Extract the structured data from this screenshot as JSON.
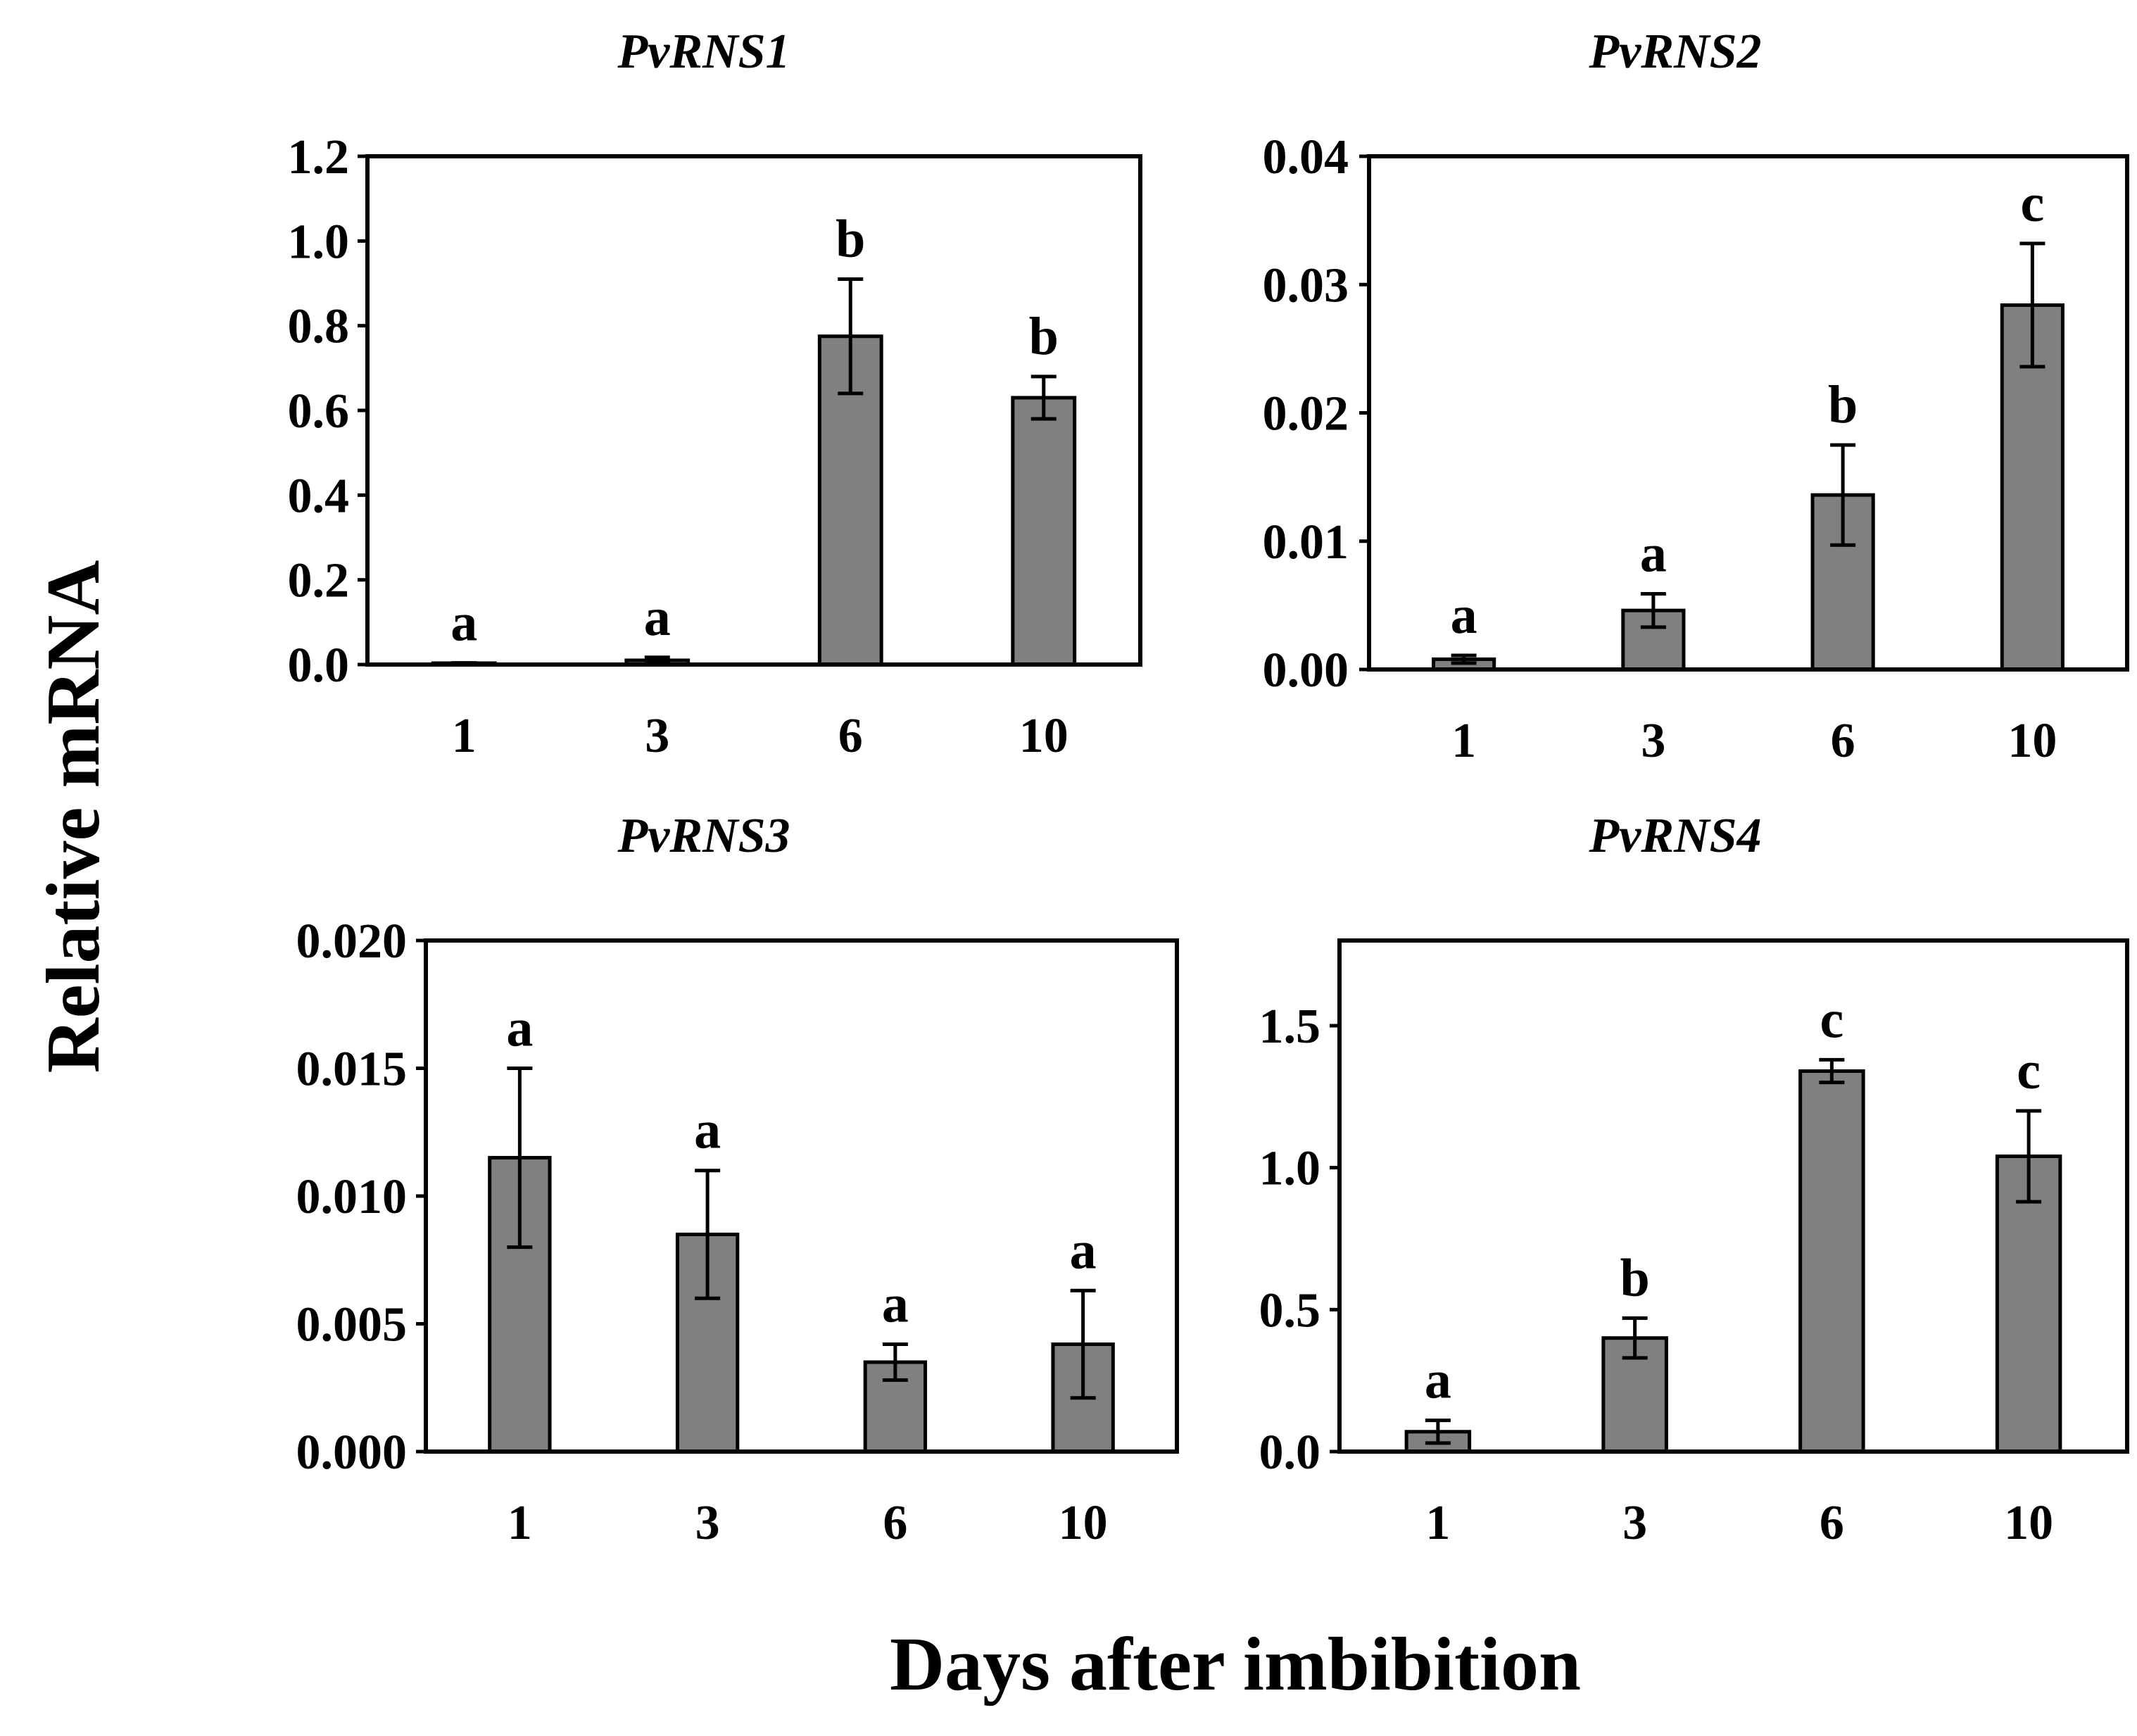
{
  "figure": {
    "ylabel": "Relative mRNA",
    "xlabel": "Days after imbibition"
  },
  "colors": {
    "bar_fill": "#808080",
    "bar_stroke": "#000000",
    "frame": "#000000",
    "background": "#ffffff"
  },
  "chart_data": [
    {
      "type": "bar",
      "title": "PvRNS1",
      "categories": [
        "1",
        "3",
        "6",
        "10"
      ],
      "values": [
        0.002,
        0.01,
        0.775,
        0.63
      ],
      "errors": [
        0.002,
        0.007,
        0.135,
        0.05
      ],
      "significance": [
        "a",
        "a",
        "b",
        "b"
      ],
      "ylim": [
        0,
        1.2
      ],
      "yticks": [
        "0.0",
        "0.2",
        "0.4",
        "0.6",
        "0.8",
        "1.0",
        "1.2"
      ],
      "xlabel": "",
      "ylabel": ""
    },
    {
      "type": "bar",
      "title": "PvRNS2",
      "categories": [
        "1",
        "3",
        "6",
        "10"
      ],
      "values": [
        0.0008,
        0.0046,
        0.0136,
        0.0284
      ],
      "errors": [
        0.0003,
        0.0013,
        0.0039,
        0.0048
      ],
      "significance": [
        "a",
        "a",
        "b",
        "c"
      ],
      "ylim": [
        0,
        0.04
      ],
      "yticks": [
        "0.00",
        "0.01",
        "0.02",
        "0.03",
        "0.04"
      ],
      "xlabel": "",
      "ylabel": ""
    },
    {
      "type": "bar",
      "title": "PvRNS3",
      "categories": [
        "1",
        "3",
        "6",
        "10"
      ],
      "values": [
        0.0115,
        0.0085,
        0.0035,
        0.0042
      ],
      "errors": [
        0.0035,
        0.0025,
        0.0007,
        0.0021
      ],
      "significance": [
        "a",
        "a",
        "a",
        "a"
      ],
      "ylim": [
        0,
        0.02
      ],
      "yticks": [
        "0.000",
        "0.005",
        "0.010",
        "0.015",
        "0.020"
      ],
      "xlabel": "",
      "ylabel": ""
    },
    {
      "type": "bar",
      "title": "PvRNS4",
      "categories": [
        "1",
        "3",
        "6",
        "10"
      ],
      "values": [
        0.07,
        0.4,
        1.34,
        1.04
      ],
      "errors": [
        0.04,
        0.07,
        0.04,
        0.16
      ],
      "significance": [
        "a",
        "b",
        "c",
        "c"
      ],
      "ylim": [
        0,
        1.8
      ],
      "yticks": [
        "0.0",
        "0.5",
        "1.0",
        "1.5"
      ],
      "xlabel": "",
      "ylabel": ""
    }
  ]
}
